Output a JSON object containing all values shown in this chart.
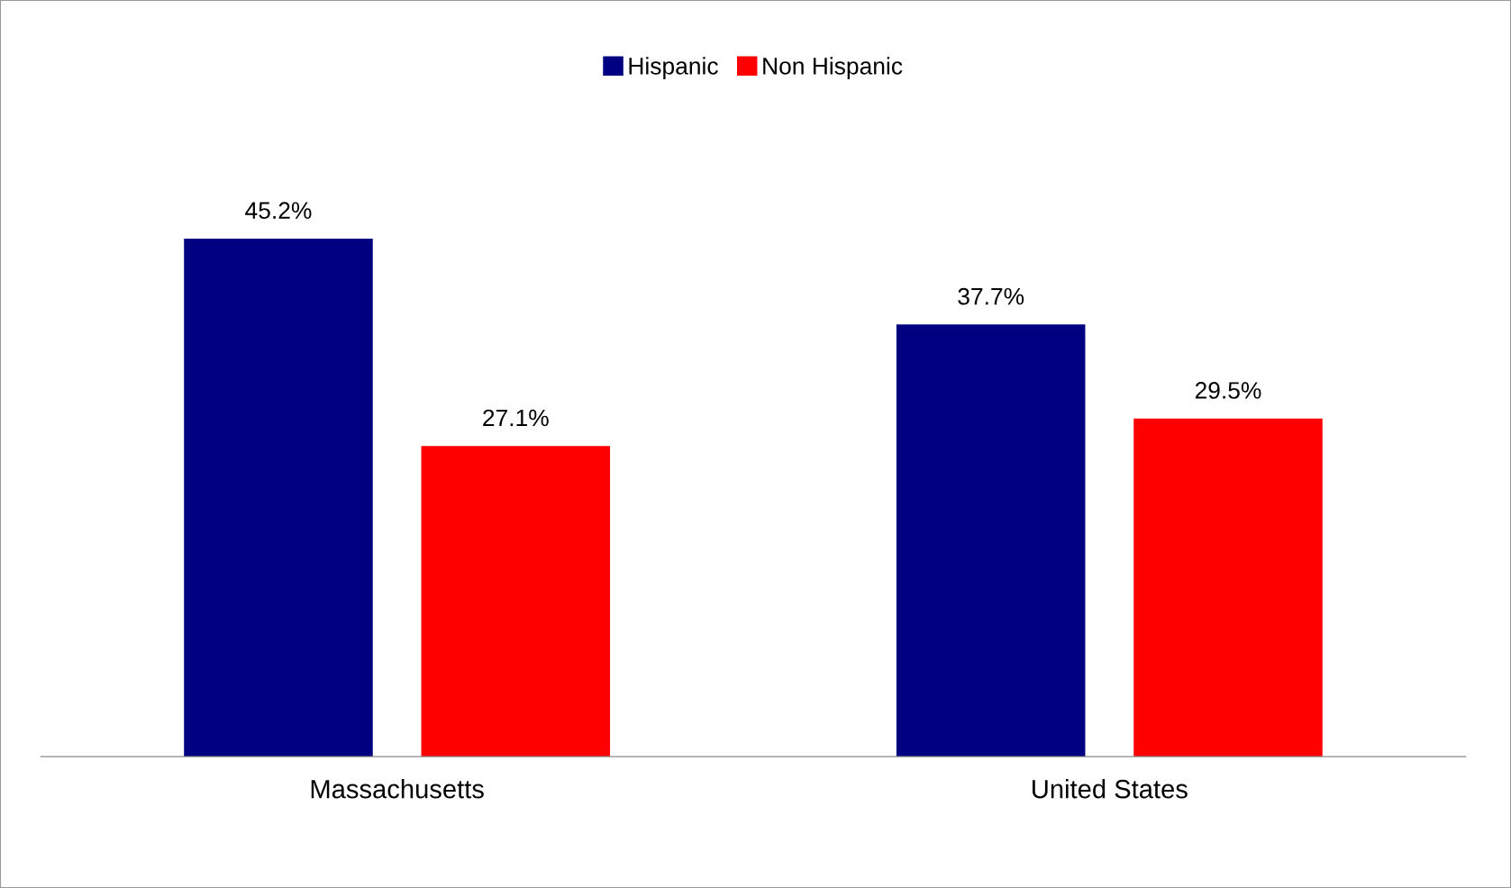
{
  "chart_data": {
    "type": "bar",
    "categories": [
      "Massachusetts",
      "United States"
    ],
    "series": [
      {
        "name": "Hispanic",
        "color": "#000080",
        "values": [
          45.2,
          37.7
        ],
        "value_labels": [
          "45.2%",
          "37.7%"
        ]
      },
      {
        "name": "Non Hispanic",
        "color": "#ff0000",
        "values": [
          27.1,
          29.5
        ],
        "value_labels": [
          "27.1%",
          "29.5%"
        ]
      }
    ],
    "legend": "top",
    "grid": false
  }
}
